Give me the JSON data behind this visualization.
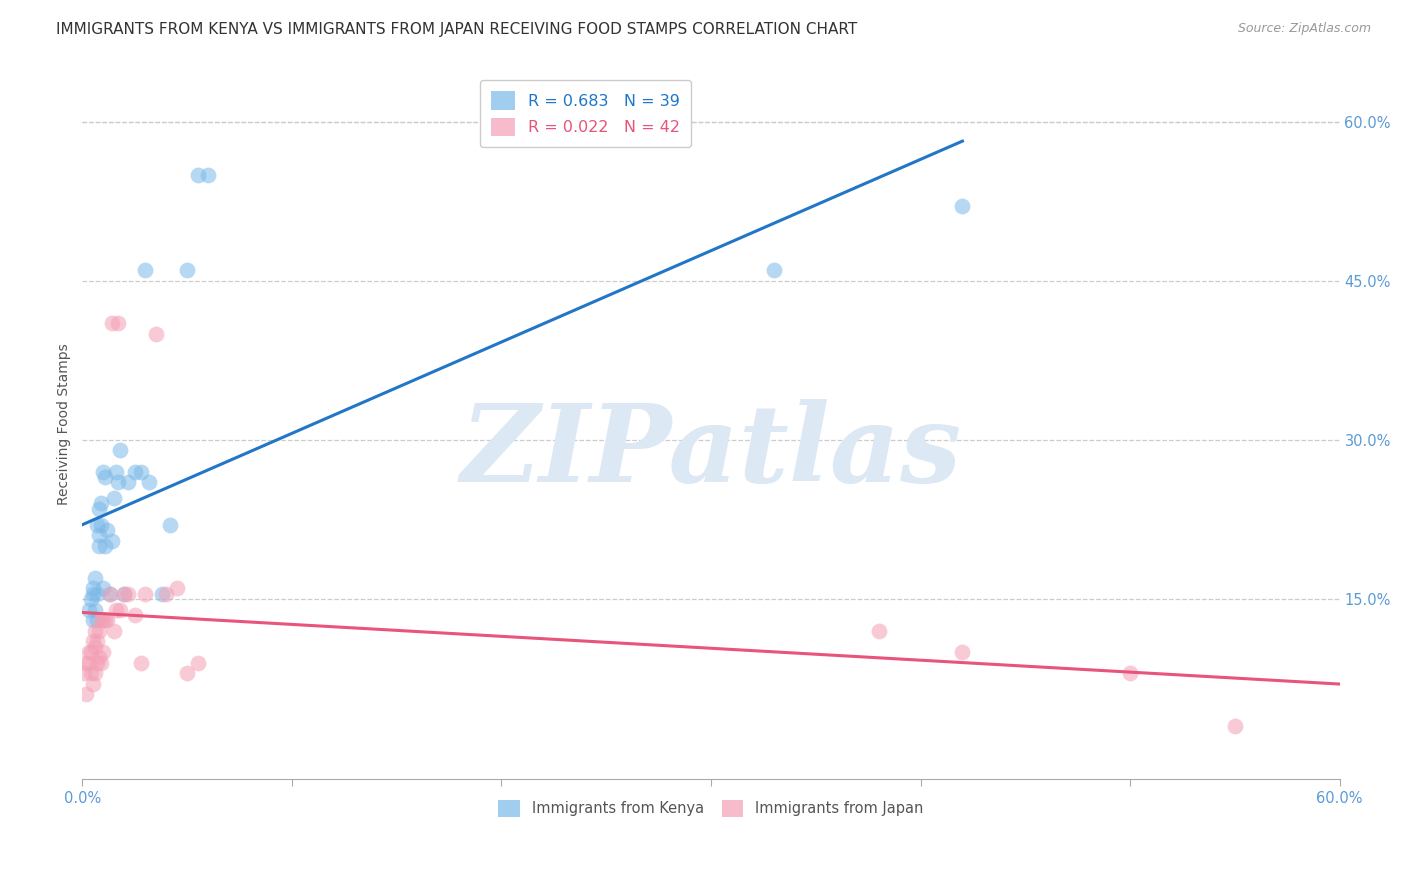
{
  "title": "IMMIGRANTS FROM KENYA VS IMMIGRANTS FROM JAPAN RECEIVING FOOD STAMPS CORRELATION CHART",
  "source": "Source: ZipAtlas.com",
  "ylabel": "Receiving Food Stamps",
  "xlim": [
    0.0,
    0.6
  ],
  "ylim": [
    -0.02,
    0.65
  ],
  "y_ticks_right": [
    0.15,
    0.3,
    0.45,
    0.6
  ],
  "y_tick_labels_right": [
    "15.0%",
    "30.0%",
    "45.0%",
    "60.0%"
  ],
  "kenya_color": "#7ab8e8",
  "japan_color": "#f4a0b5",
  "kenya_R": 0.683,
  "kenya_N": 39,
  "japan_R": 0.022,
  "japan_N": 42,
  "kenya_line_color": "#2176c7",
  "japan_line_color": "#e8547a",
  "watermark": "ZIPatlas",
  "watermark_color": "#dde8f5",
  "kenya_x": [
    0.003,
    0.004,
    0.005,
    0.005,
    0.005,
    0.006,
    0.006,
    0.007,
    0.007,
    0.007,
    0.008,
    0.008,
    0.008,
    0.009,
    0.009,
    0.01,
    0.01,
    0.011,
    0.011,
    0.012,
    0.013,
    0.014,
    0.015,
    0.016,
    0.017,
    0.018,
    0.02,
    0.022,
    0.025,
    0.028,
    0.03,
    0.032,
    0.038,
    0.042,
    0.05,
    0.055,
    0.06,
    0.33,
    0.42
  ],
  "kenya_y": [
    0.14,
    0.15,
    0.13,
    0.155,
    0.16,
    0.14,
    0.17,
    0.13,
    0.155,
    0.22,
    0.21,
    0.235,
    0.2,
    0.22,
    0.24,
    0.16,
    0.27,
    0.2,
    0.265,
    0.215,
    0.155,
    0.205,
    0.245,
    0.27,
    0.26,
    0.29,
    0.155,
    0.26,
    0.27,
    0.27,
    0.46,
    0.26,
    0.155,
    0.22,
    0.46,
    0.55,
    0.55,
    0.46,
    0.52
  ],
  "japan_x": [
    0.001,
    0.002,
    0.002,
    0.003,
    0.003,
    0.004,
    0.004,
    0.005,
    0.005,
    0.006,
    0.006,
    0.006,
    0.007,
    0.007,
    0.008,
    0.008,
    0.009,
    0.009,
    0.01,
    0.01,
    0.011,
    0.012,
    0.013,
    0.014,
    0.015,
    0.016,
    0.017,
    0.018,
    0.02,
    0.022,
    0.025,
    0.028,
    0.03,
    0.035,
    0.04,
    0.045,
    0.05,
    0.055,
    0.38,
    0.42,
    0.5,
    0.55
  ],
  "japan_y": [
    0.08,
    0.06,
    0.09,
    0.09,
    0.1,
    0.08,
    0.1,
    0.07,
    0.11,
    0.08,
    0.105,
    0.12,
    0.09,
    0.11,
    0.095,
    0.12,
    0.09,
    0.13,
    0.1,
    0.13,
    0.13,
    0.13,
    0.155,
    0.41,
    0.12,
    0.14,
    0.41,
    0.14,
    0.155,
    0.155,
    0.135,
    0.09,
    0.155,
    0.4,
    0.155,
    0.16,
    0.08,
    0.09,
    0.12,
    0.1,
    0.08,
    0.03
  ],
  "background_color": "#ffffff",
  "title_fontsize": 11,
  "label_fontsize": 10,
  "tick_fontsize": 10.5
}
